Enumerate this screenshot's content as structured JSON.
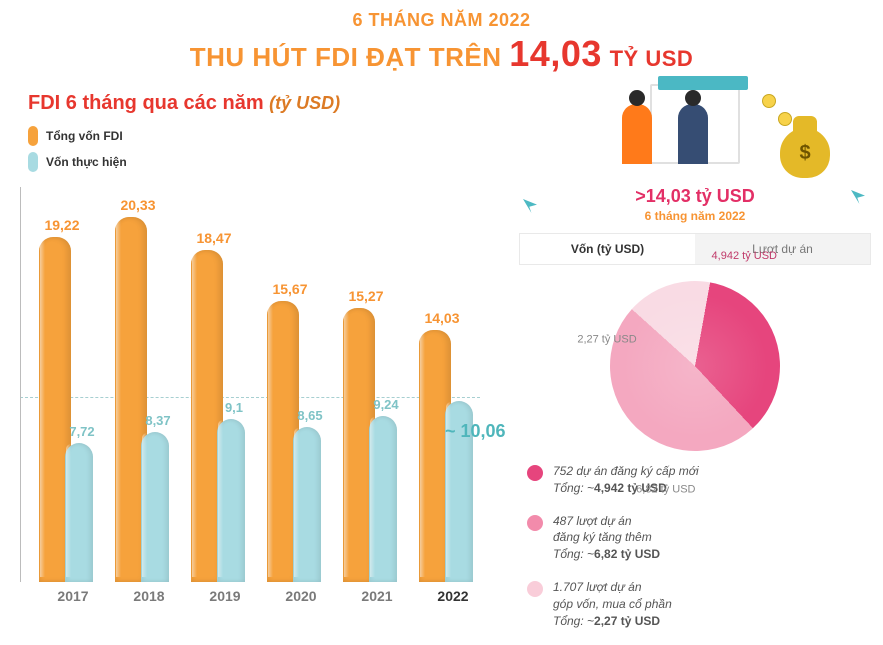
{
  "header": {
    "line1": "6 THÁNG NĂM 2022",
    "line2_a": "THU HÚT FDI ĐẠT TRÊN",
    "line2_big": "14,03",
    "line2_unit": "TỶ USD"
  },
  "bar_chart": {
    "type": "grouped-bar",
    "title_main": "FDI 6 tháng qua các năm",
    "title_unit": "(tỷ USD)",
    "legend": [
      {
        "label": "Tổng vốn FDI",
        "color": "#f6a23c"
      },
      {
        "label": "Vốn thực hiện",
        "color": "#a8dbe2"
      }
    ],
    "colors": {
      "seriesA": "#f6a23c",
      "seriesB": "#a8dbe2",
      "seriesA_text": "#f79433",
      "seriesB_text": "#73bfc3"
    },
    "y_max": 22,
    "categories": [
      "2017",
      "2018",
      "2019",
      "2020",
      "2021",
      "2022"
    ],
    "seriesA": [
      "19,22",
      "20,33",
      "18,47",
      "15,67",
      "15,27",
      "14,03"
    ],
    "seriesB": [
      "7,72",
      "8,37",
      "9,1",
      "8,65",
      "9,24",
      ""
    ],
    "seriesA_num": [
      19.22,
      20.33,
      18.47,
      15.67,
      15.27,
      14.03
    ],
    "seriesB_num": [
      7.72,
      8.37,
      9.1,
      8.65,
      9.24,
      10.06
    ],
    "tilde_value": "~ 10,06",
    "bar_width_a": 32,
    "bar_width_b": 28,
    "group_spacing": 76,
    "axis_color": "#bcbcbc",
    "dashed_ref_color": "#a6cfd1"
  },
  "right": {
    "headline": ">14,03 tỷ USD",
    "sub": "6 tháng năm 2022",
    "tabs": {
      "active": "Vốn (tỷ USD)",
      "other": "Lượt dự án"
    },
    "pie": {
      "type": "pie",
      "slices": [
        {
          "label": "4,942 tỷ USD",
          "value": 4.942,
          "color": "#e6457d"
        },
        {
          "label": "6,82 tỷ USD",
          "value": 6.82,
          "color": "#f4a8c0"
        },
        {
          "label": "2,27 tỷ USD",
          "value": 2.27,
          "color": "#f9dbe4"
        }
      ],
      "total": 14.032,
      "background": "#ffffff"
    },
    "bullets": [
      {
        "color": "#e6457d",
        "line1": "752 dự án đăng ký cấp mới",
        "line2_a": "Tổng: ~",
        "line2_b": "4,942 tỷ USD"
      },
      {
        "color": "#f28bab",
        "line1": "487 lượt dự án",
        "line1b": "đăng ký tăng thêm",
        "line2_a": "Tổng: ~",
        "line2_b": "6,82 tỷ USD"
      },
      {
        "color": "#f9cdd9",
        "line1": "1.707 lượt dự án",
        "line1b": "góp vốn, mua cổ phần",
        "line2_a": "Tổng: ~",
        "line2_b": "2,27 tỷ USD"
      }
    ]
  },
  "typography": {
    "title_fontsize": 26,
    "axis_label_fontsize": 14
  }
}
